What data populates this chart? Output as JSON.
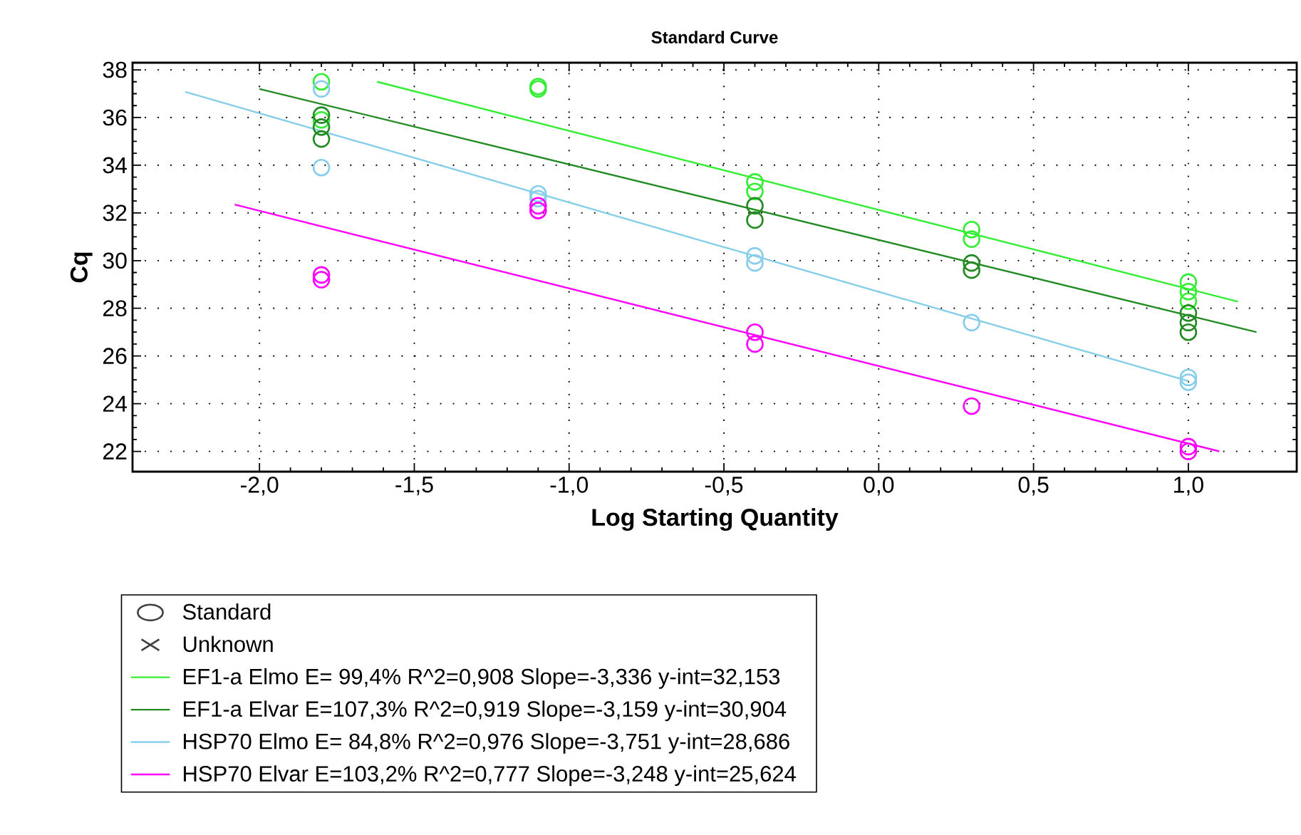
{
  "chart_data": {
    "type": "scatter",
    "title": "Standard Curve",
    "xlabel": "Log Starting Quantity",
    "ylabel": "Cq",
    "xlim": [
      -2.41,
      1.35
    ],
    "ylim": [
      21.15,
      38.3
    ],
    "xticks": [
      {
        "value": -2.0,
        "label": "-2,0"
      },
      {
        "value": -1.5,
        "label": "-1,5"
      },
      {
        "value": -1.0,
        "label": "-1,0"
      },
      {
        "value": -0.5,
        "label": "-0,5"
      },
      {
        "value": 0.0,
        "label": "0,0"
      },
      {
        "value": 0.5,
        "label": "0,5"
      },
      {
        "value": 1.0,
        "label": "1,0"
      }
    ],
    "yticks": [
      22,
      24,
      26,
      28,
      30,
      32,
      34,
      36,
      38
    ],
    "grid": true,
    "legend": "bottom",
    "marker": "circle",
    "series": [
      {
        "name": "Standard",
        "marker": "circle",
        "color": "#404040"
      },
      {
        "name": "Unknown",
        "marker": "cross",
        "color": "#404040"
      },
      {
        "name": "EF1-a Elmo E= 99,4% R^2=0,908 Slope=-3,336 y-int=32,153",
        "type": "line",
        "marker": "none",
        "line_style": "solid",
        "color": "#33ee33",
        "x": [
          -1.62,
          1.16
        ],
        "values": [
          37.5,
          28.28
        ]
      },
      {
        "name": "EF1-a Elvar E=107,3% R^2=0,919 Slope=-3,159 y-int=30,904",
        "type": "line",
        "marker": "none",
        "line_style": "solid",
        "color": "#228b22",
        "x": [
          -2.0,
          1.22
        ],
        "values": [
          37.2,
          27.0
        ]
      },
      {
        "name": "HSP70 Elmo E= 84,8% R^2=0,976 Slope=-3,751 y-int=28,686",
        "type": "line",
        "marker": "none",
        "line_style": "solid",
        "color": "#87ceeb",
        "x": [
          -2.24,
          1.0
        ],
        "values": [
          37.08,
          24.95
        ]
      },
      {
        "name": "HSP70 Elvar E=103,2% R^2=0,777 Slope=-3,248 y-int=25,624",
        "type": "line",
        "marker": "none",
        "line_style": "solid",
        "color": "#ff00ff",
        "x": [
          -2.08,
          1.1
        ],
        "values": [
          32.35,
          22.0
        ]
      },
      {
        "color": "#33ee33",
        "x": [
          -1.8,
          -1.8,
          -1.1,
          -1.1,
          -0.4,
          -0.4,
          0.3,
          0.3,
          1.0,
          1.0,
          1.0
        ],
        "values": [
          37.5,
          35.9,
          37.3,
          37.2,
          33.3,
          32.9,
          31.3,
          30.9,
          29.1,
          28.7,
          28.3
        ]
      },
      {
        "color": "#228b22",
        "x": [
          -1.8,
          -1.8,
          -1.8,
          -0.4,
          -0.4,
          0.3,
          0.3,
          1.0,
          1.0,
          1.0
        ],
        "values": [
          36.1,
          35.6,
          35.1,
          32.3,
          31.7,
          29.9,
          29.6,
          27.8,
          27.4,
          27.0
        ]
      },
      {
        "color": "#87ceeb",
        "x": [
          -1.8,
          -1.8,
          -1.1,
          -1.1,
          -0.4,
          -0.4,
          0.3,
          1.0,
          1.0
        ],
        "values": [
          37.2,
          33.9,
          32.8,
          32.6,
          30.2,
          29.9,
          27.4,
          25.1,
          24.9
        ]
      },
      {
        "color": "#ff00ff",
        "x": [
          -1.8,
          -1.8,
          -1.1,
          -1.1,
          -0.4,
          -0.4,
          0.3,
          1.0,
          1.0
        ],
        "values": [
          29.4,
          29.2,
          32.3,
          32.1,
          27.0,
          26.5,
          23.9,
          22.2,
          22.0
        ]
      }
    ]
  }
}
